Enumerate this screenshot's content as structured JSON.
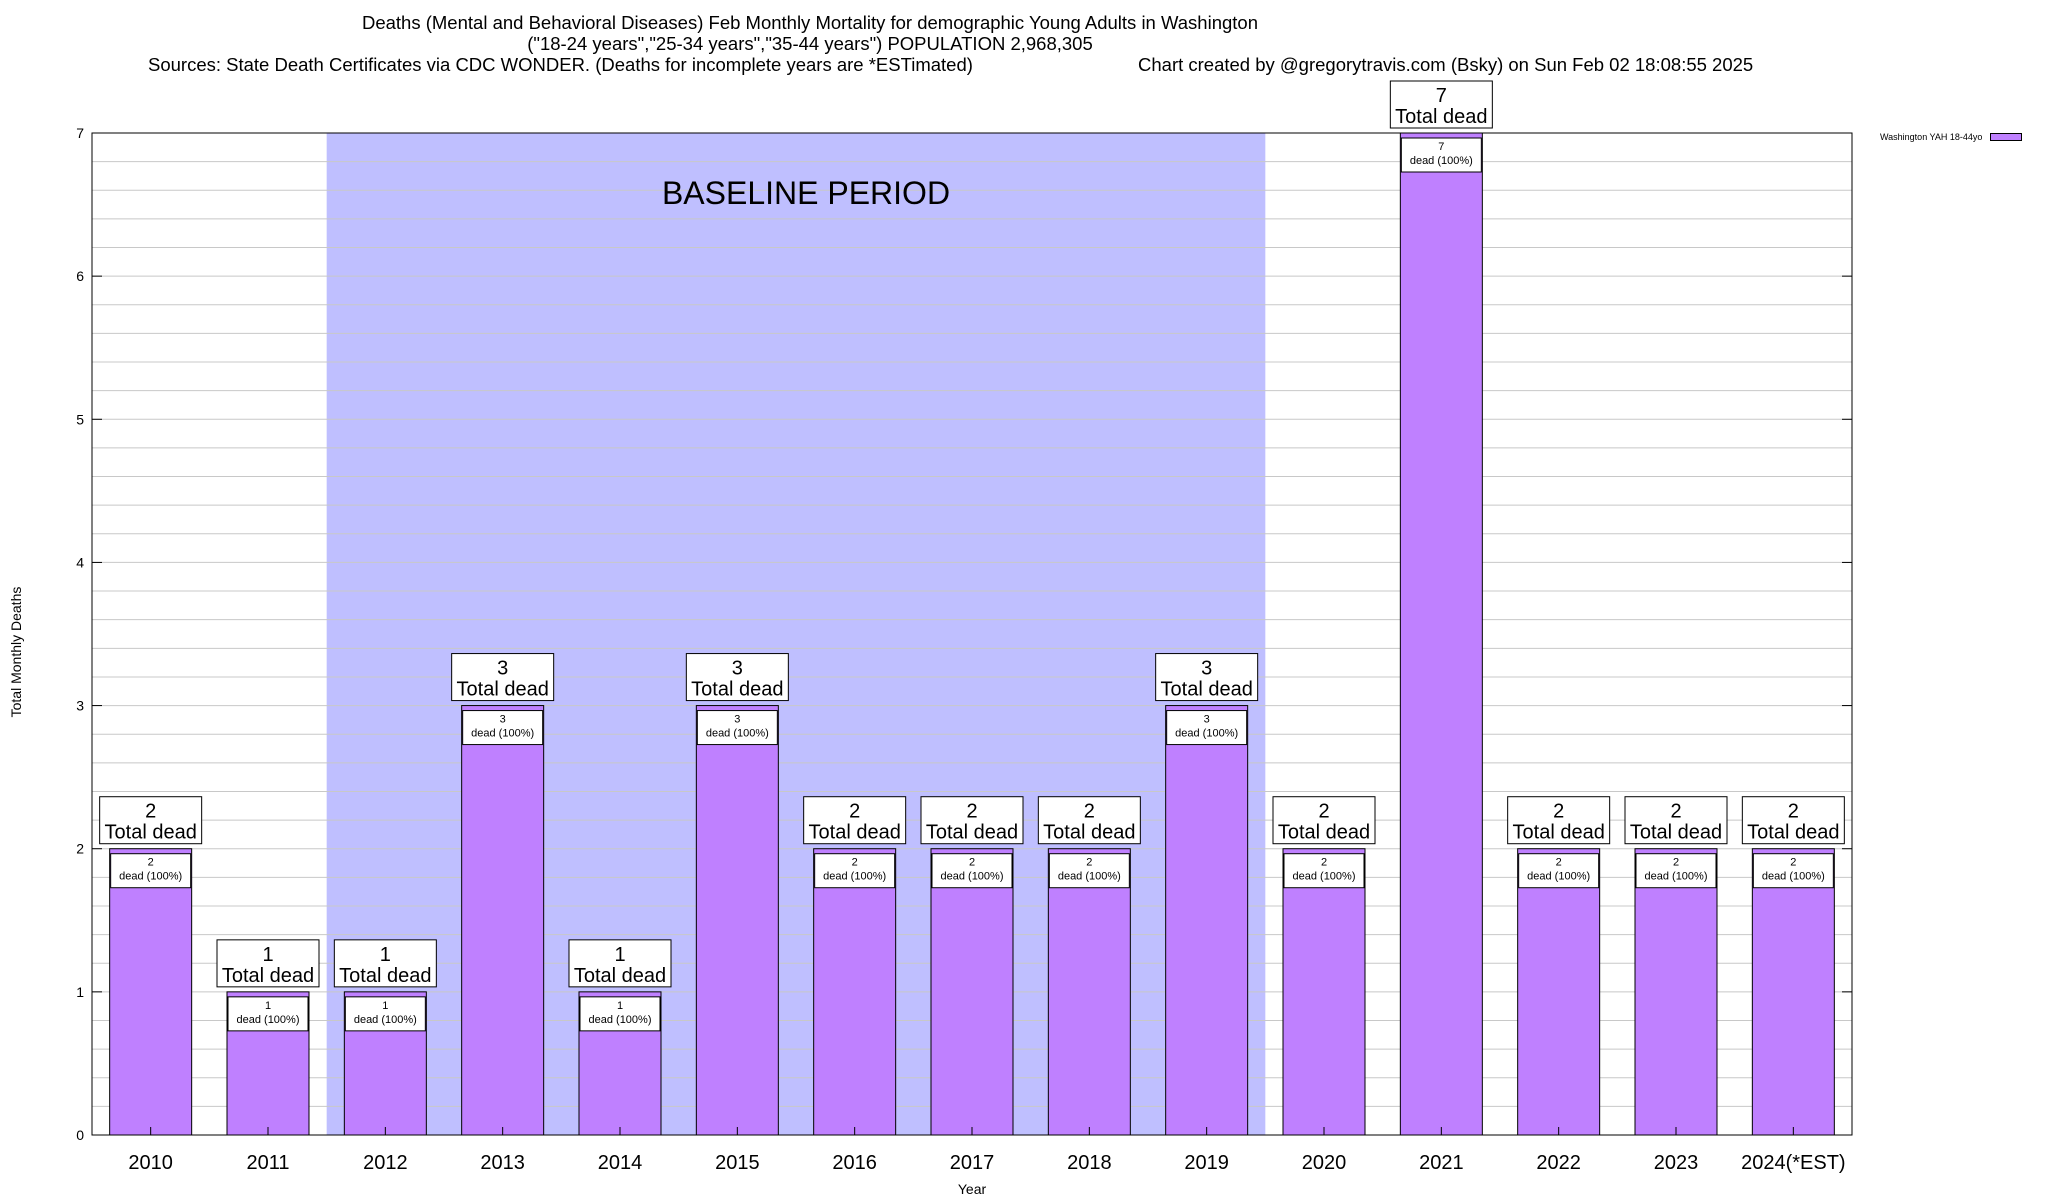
{
  "title_lines": [
    "Deaths (Mental and Behavioral Diseases) Feb Monthly Mortality for demographic Young Adults in Washington",
    "(\"18-24 years\",\"25-34 years\",\"35-44 years\") POPULATION 2,968,305"
  ],
  "sources_text": "Sources: State Death Certificates via CDC WONDER. (Deaths for incomplete years are *ESTimated)",
  "credit_text": "Chart created by @gregorytravis.com (Bsky) on Sun Feb 02 18:08:55 2025",
  "legend_label": "Washington YAH 18-44yo",
  "baseline_label": "BASELINE PERIOD",
  "colors": {
    "bar": "#bf80ff",
    "baseline_band": "#bfbfff",
    "grid": "#c8c8c8"
  },
  "chart_data": {
    "type": "bar",
    "xlabel": "Year",
    "ylabel": "Total Monthly Deaths",
    "ylim": [
      0,
      7
    ],
    "y_ticks": [
      0,
      1,
      2,
      3,
      4,
      5,
      6,
      7
    ],
    "grid": true,
    "legend_position": "top-right",
    "categories": [
      "2010",
      "2011",
      "2012",
      "2013",
      "2014",
      "2015",
      "2016",
      "2017",
      "2018",
      "2019",
      "2020",
      "2021",
      "2022",
      "2023",
      "2024(*EST)"
    ],
    "series": [
      {
        "name": "Washington YAH 18-44yo",
        "values": [
          2,
          1,
          1,
          3,
          1,
          3,
          2,
          2,
          2,
          3,
          2,
          7,
          2,
          2,
          2
        ]
      }
    ],
    "total_label_suffix": "Total dead",
    "inner_label_suffix": "dead (100%)",
    "baseline_period": {
      "start": "2012",
      "end": "2019"
    }
  }
}
